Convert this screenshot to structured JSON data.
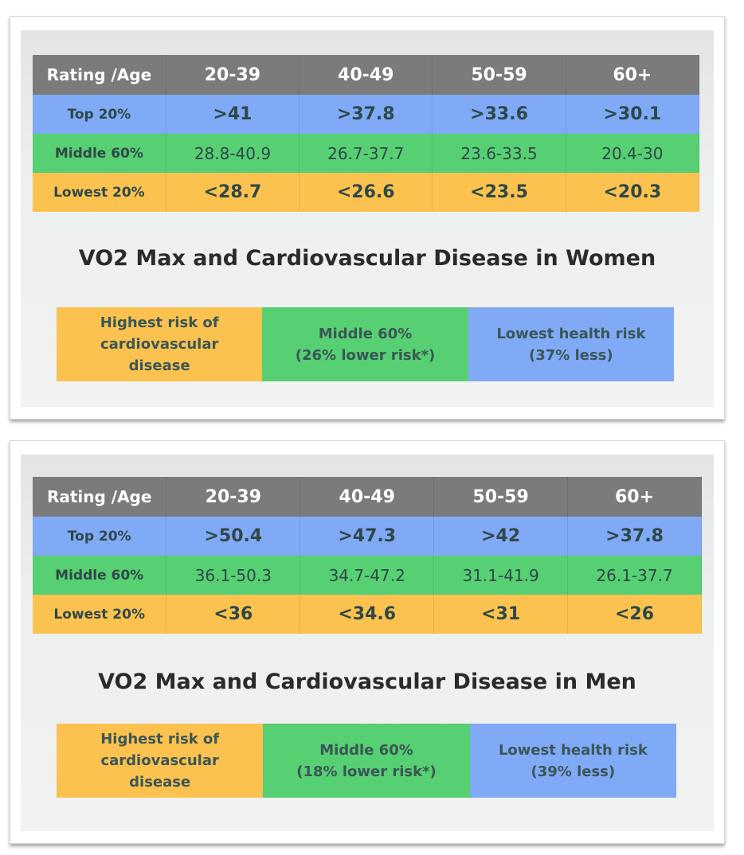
{
  "colors": {
    "header": "#7b7b7b",
    "top": "#80a9f6",
    "middle": "#57cf73",
    "lowest": "#fbc24f"
  },
  "panels": [
    {
      "headers": [
        "Rating /Age",
        "20-39",
        "40-49",
        "50-59",
        "60+"
      ],
      "rows": [
        {
          "label": "Top 20%",
          "values": [
            ">41",
            ">37.8",
            ">33.6",
            ">30.1"
          ]
        },
        {
          "label": "Middle 60%",
          "values": [
            "28.8-40.9",
            "26.7-37.7",
            "23.6-33.5",
            "20.4-30"
          ]
        },
        {
          "label": "Lowest 20%",
          "values": [
            "<28.7",
            "<26.6",
            "<23.5",
            "<20.3"
          ]
        }
      ],
      "title": "VO2 Max and Cardiovascular Disease in Women",
      "legend": [
        "Highest risk of\ncardiovascular\ndisease",
        "Middle 60%\n(26% lower risk*)",
        "Lowest health risk\n(37% less)"
      ]
    },
    {
      "headers": [
        "Rating /Age",
        "20-39",
        "40-49",
        "50-59",
        "60+"
      ],
      "rows": [
        {
          "label": "Top 20%",
          "values": [
            ">50.4",
            ">47.3",
            ">42",
            ">37.8"
          ]
        },
        {
          "label": "Middle 60%",
          "values": [
            "36.1-50.3",
            "34.7-47.2",
            "31.1-41.9",
            "26.1-37.7"
          ]
        },
        {
          "label": "Lowest 20%",
          "values": [
            "<36",
            "<34.6",
            "<31",
            "<26"
          ]
        }
      ],
      "title": "VO2 Max and Cardiovascular Disease in Men",
      "legend": [
        "Highest risk of\ncardiovascular\ndisease",
        "Middle 60%\n(18% lower risk*)",
        "Lowest health risk\n(39% less)"
      ]
    }
  ]
}
